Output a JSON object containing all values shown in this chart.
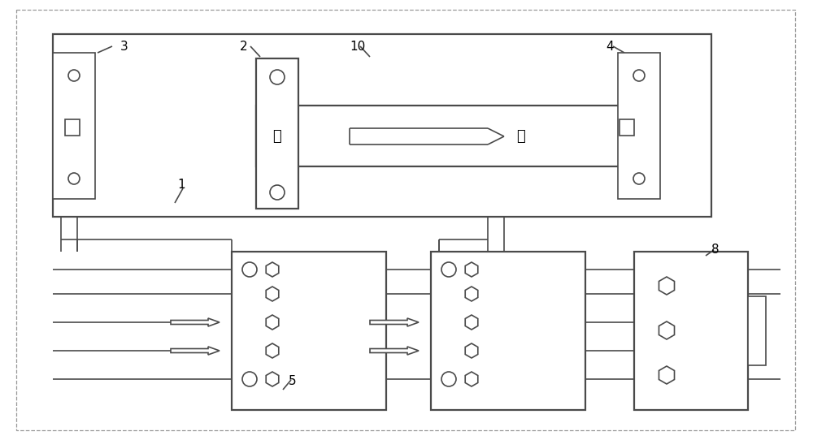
{
  "bg_color": "#ffffff",
  "line_color": "#4a4a4a",
  "lw": 1.2,
  "lw2": 1.6,
  "text_qian": "前",
  "text_hou": "后"
}
